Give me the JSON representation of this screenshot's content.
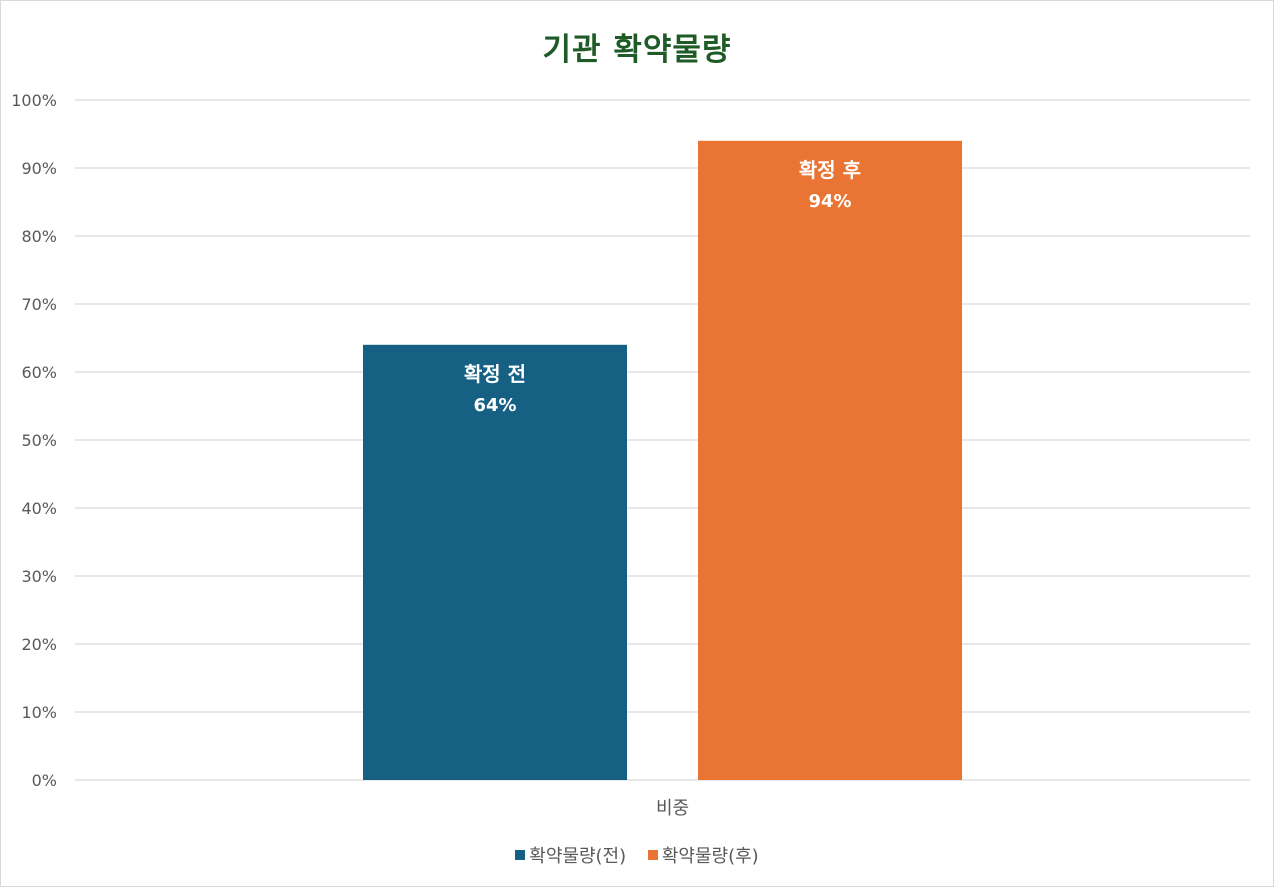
{
  "chart_data": {
    "type": "bar",
    "title": "기관 확약물량",
    "categories": [
      "비중"
    ],
    "series": [
      {
        "name": "확약물량(전)",
        "values": [
          64
        ],
        "label": "확정 전",
        "value_label": "64%",
        "color": "#166083"
      },
      {
        "name": "확약물량(후)",
        "values": [
          94
        ],
        "label": "확정 후",
        "value_label": "94%",
        "color": "#ea7433"
      }
    ],
    "ylim": [
      0,
      100
    ],
    "yticks": [
      "0%",
      "10%",
      "20%",
      "30%",
      "40%",
      "50%",
      "60%",
      "70%",
      "80%",
      "90%",
      "100%"
    ],
    "grid": true,
    "legend": "bottom"
  }
}
